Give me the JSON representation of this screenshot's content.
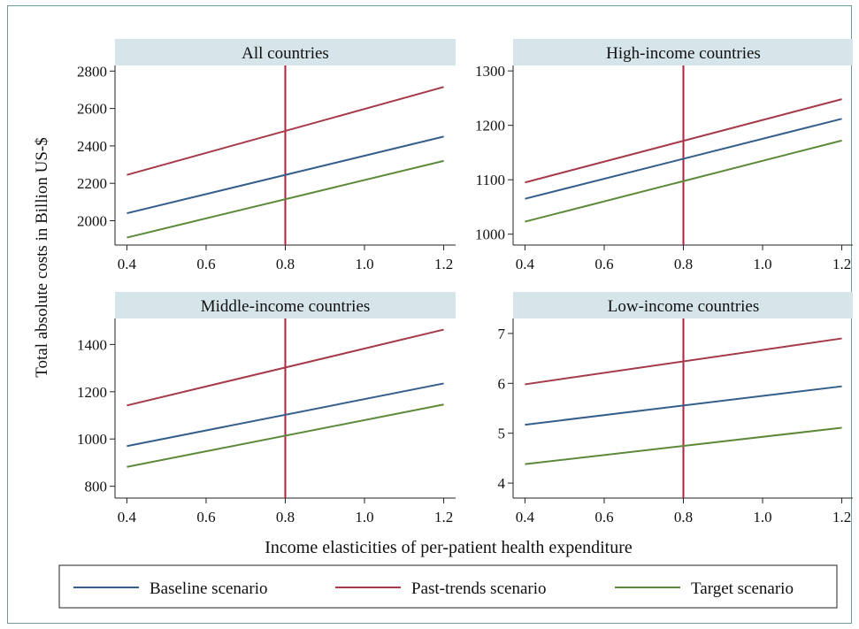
{
  "ylabel": "Total absolute costs in Billion US-$",
  "xlabel": "Income elasticities of per-patient health expenditure",
  "colors": {
    "baseline": "#355e8a",
    "past": "#a53a4a",
    "target": "#5d8a3a",
    "refline": "#b0213c",
    "header": "#d5e5ea"
  },
  "legend": [
    "Baseline scenario",
    "Past-trends scenario",
    "Target scenario"
  ],
  "chart_data": [
    {
      "type": "line",
      "title": "All countries",
      "x": [
        0.4,
        1.2
      ],
      "xticks": [
        "0.4",
        "0.6",
        "0.8",
        "1.0",
        "1.2"
      ],
      "xlim": [
        0.37,
        1.23
      ],
      "yticks": [
        "2000",
        "2200",
        "2400",
        "2600",
        "2800"
      ],
      "ylim": [
        1870,
        2830
      ],
      "ref_x": 0.8,
      "series": [
        {
          "name": "Baseline scenario",
          "values": [
            2040,
            2450
          ]
        },
        {
          "name": "Past-trends scenario",
          "values": [
            2245,
            2715
          ]
        },
        {
          "name": "Target scenario",
          "values": [
            1910,
            2320
          ]
        }
      ]
    },
    {
      "type": "line",
      "title": "High-income countries",
      "x": [
        0.4,
        1.2
      ],
      "xticks": [
        "0.4",
        "0.6",
        "0.8",
        "1.0",
        "1.2"
      ],
      "xlim": [
        0.37,
        1.23
      ],
      "yticks": [
        "1000",
        "1100",
        "1200",
        "1300"
      ],
      "ylim": [
        980,
        1310
      ],
      "ref_x": 0.8,
      "series": [
        {
          "name": "Baseline scenario",
          "values": [
            1065,
            1212
          ]
        },
        {
          "name": "Past-trends scenario",
          "values": [
            1095,
            1248
          ]
        },
        {
          "name": "Target scenario",
          "values": [
            1023,
            1172
          ]
        }
      ]
    },
    {
      "type": "line",
      "title": "Middle-income countries",
      "x": [
        0.4,
        1.2
      ],
      "xticks": [
        "0.4",
        "0.6",
        "0.8",
        "1.0",
        "1.2"
      ],
      "xlim": [
        0.37,
        1.23
      ],
      "yticks": [
        "800",
        "1000",
        "1200",
        "1400"
      ],
      "ylim": [
        750,
        1510
      ],
      "ref_x": 0.8,
      "series": [
        {
          "name": "Baseline scenario",
          "values": [
            970,
            1235
          ]
        },
        {
          "name": "Past-trends scenario",
          "values": [
            1142,
            1463
          ]
        },
        {
          "name": "Target scenario",
          "values": [
            882,
            1146
          ]
        }
      ]
    },
    {
      "type": "line",
      "title": "Low-income countries",
      "x": [
        0.4,
        1.2
      ],
      "xticks": [
        "0.4",
        "0.6",
        "0.8",
        "1.0",
        "1.2"
      ],
      "xlim": [
        0.37,
        1.23
      ],
      "yticks": [
        "4",
        "5",
        "6",
        "7"
      ],
      "ylim": [
        3.7,
        7.3
      ],
      "ref_x": 0.8,
      "series": [
        {
          "name": "Baseline scenario",
          "values": [
            5.17,
            5.94
          ]
        },
        {
          "name": "Past-trends scenario",
          "values": [
            5.98,
            6.9
          ]
        },
        {
          "name": "Target scenario",
          "values": [
            4.38,
            5.11
          ]
        }
      ]
    }
  ]
}
